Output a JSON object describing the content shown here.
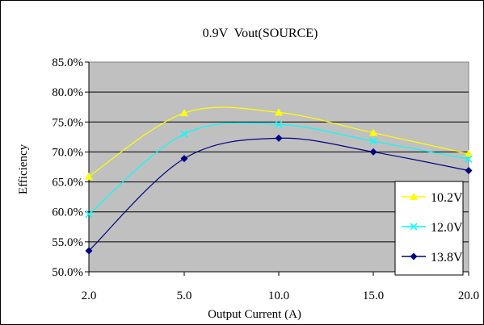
{
  "chart_data": {
    "type": "line",
    "title": "0.9V  Vout(SOURCE)",
    "xlabel": "Output Current (A)",
    "ylabel": "Efficiency",
    "x_tick_labels": [
      "2.0",
      "5.0",
      "10.0",
      "15.0",
      "20.0"
    ],
    "y_tick_labels": [
      "50.0%",
      "55.0%",
      "60.0%",
      "65.0%",
      "70.0%",
      "75.0%",
      "80.0%",
      "85.0%"
    ],
    "ylim": [
      50,
      85
    ],
    "y_unit": "%",
    "grid": "horizontal",
    "plot_background": "#c0c0c0",
    "legend_position": "right",
    "series": [
      {
        "name": "10.2V",
        "color": "#ffff00",
        "marker": "triangle",
        "values": [
          65.9,
          76.5,
          76.6,
          73.2,
          69.7
        ]
      },
      {
        "name": "12.0V",
        "color": "#00ffff",
        "marker": "x",
        "values": [
          59.6,
          73.0,
          74.6,
          71.8,
          68.8
        ]
      },
      {
        "name": "13.8V",
        "color": "#000080",
        "marker": "diamond",
        "values": [
          53.5,
          68.9,
          72.3,
          70.0,
          66.9
        ]
      }
    ]
  }
}
